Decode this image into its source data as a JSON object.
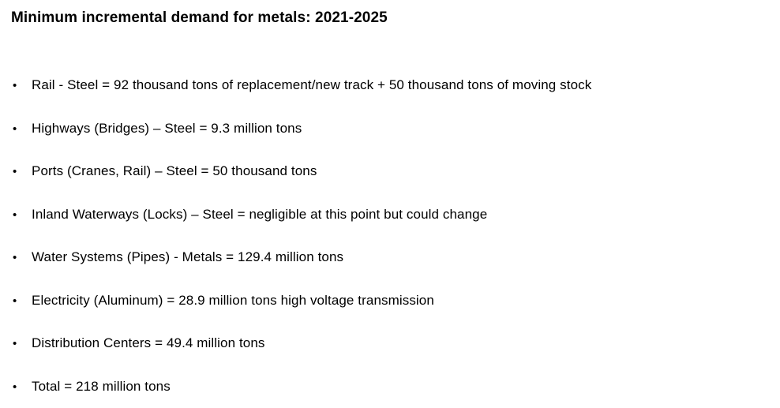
{
  "title": "Minimum incremental demand for metals: 2021-2025",
  "bullets": [
    {
      "text": "Rail - Steel = 92 thousand tons of replacement/new track + 50 thousand tons of moving stock"
    },
    {
      "text": "Highways (Bridges) – Steel = 9.3 million tons"
    },
    {
      "text": "Ports (Cranes, Rail) – Steel = 50 thousand tons"
    },
    {
      "text": "Inland Waterways (Locks) – Steel = negligible at this point but could change"
    },
    {
      "text": "Water Systems (Pipes) - Metals = 129.4 million tons"
    },
    {
      "text": "Electricity (Aluminum) = 28.9 million tons high voltage transmission"
    },
    {
      "text": "Distribution Centers = 49.4 million tons"
    },
    {
      "text": "Total = 218 million tons"
    }
  ],
  "bullet_glyph": "•"
}
